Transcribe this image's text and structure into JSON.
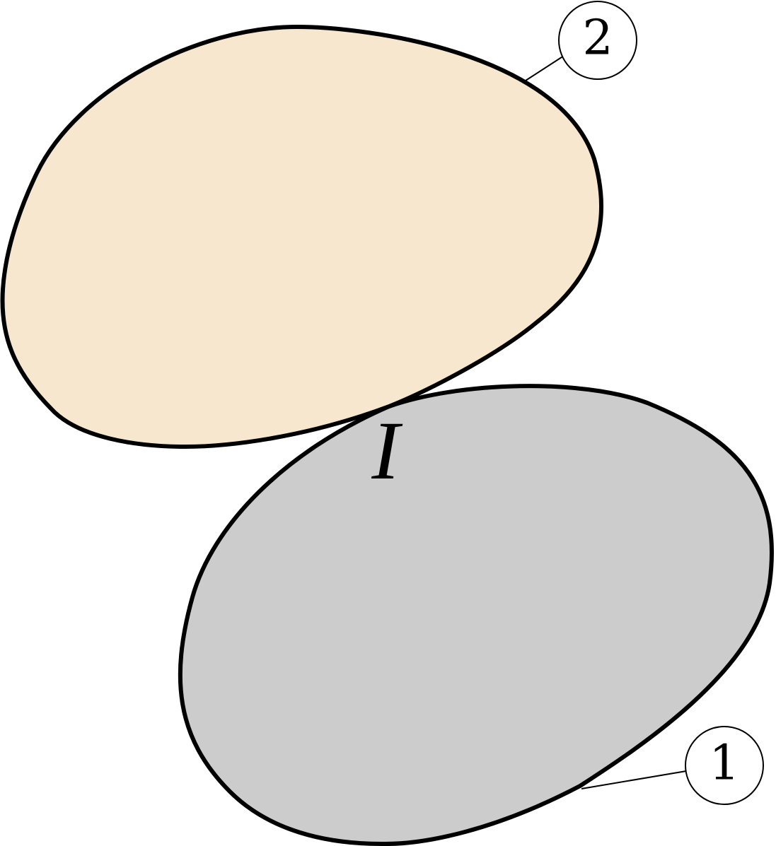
{
  "diagram": {
    "bodies": [
      {
        "id": "2",
        "label": "2",
        "fill": "#f7e7cf"
      },
      {
        "id": "1",
        "label": "1",
        "fill": "#cccccc"
      }
    ],
    "interface_label": "I",
    "colors": {
      "outline": "#000000",
      "background": "#ffffff"
    }
  }
}
